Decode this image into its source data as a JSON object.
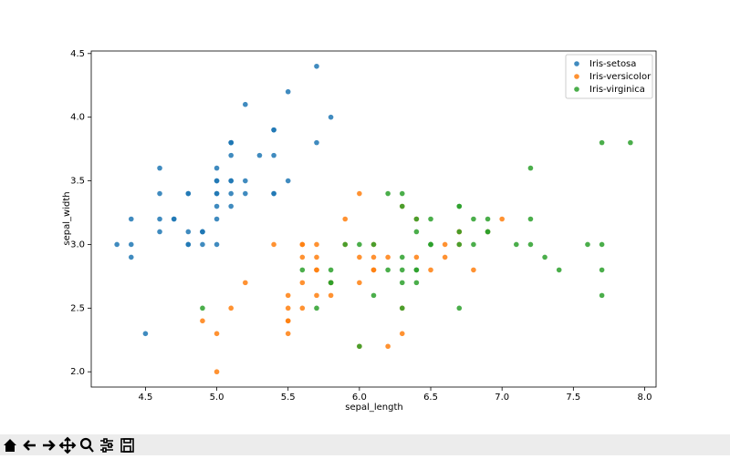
{
  "chart_data": {
    "type": "scatter",
    "xlabel": "sepal_length",
    "ylabel": "sepal_width",
    "xlim": [
      4.12,
      8.08
    ],
    "ylim": [
      1.88,
      4.52
    ],
    "xticks": [
      4.5,
      {
        "value": 5.0,
        "label": "5.0"
      },
      5.5,
      {
        "value": 6.0,
        "label": "6.0"
      },
      6.5,
      {
        "value": 7.0,
        "label": "7.0"
      },
      7.5,
      {
        "value": 8.0,
        "label": "8.0"
      }
    ],
    "yticks": [
      {
        "value": 2.0,
        "label": "2.0"
      },
      2.5,
      {
        "value": 3.0,
        "label": "3.0"
      },
      3.5,
      {
        "value": 4.0,
        "label": "4.0"
      },
      4.5
    ],
    "legend": "upper right",
    "series": [
      {
        "name": "Iris-setosa",
        "color": "#1f77b4",
        "x": [
          5.1,
          4.9,
          4.7,
          4.6,
          5.0,
          5.4,
          4.6,
          5.0,
          4.4,
          4.9,
          5.4,
          4.8,
          4.8,
          4.3,
          5.8,
          5.7,
          5.4,
          5.1,
          5.7,
          5.1,
          5.4,
          5.1,
          4.6,
          5.1,
          4.8,
          5.0,
          5.0,
          5.2,
          5.2,
          4.7,
          4.8,
          5.4,
          5.2,
          5.5,
          4.9,
          5.0,
          5.5,
          4.9,
          4.4,
          5.1,
          5.0,
          4.5,
          4.4,
          5.0,
          5.1,
          4.8,
          5.1,
          4.6,
          5.3,
          5.0
        ],
        "values": [
          3.5,
          3.0,
          3.2,
          3.1,
          3.6,
          3.9,
          3.4,
          3.4,
          2.9,
          3.1,
          3.7,
          3.4,
          3.0,
          3.0,
          4.0,
          4.4,
          3.9,
          3.5,
          3.8,
          3.8,
          3.4,
          3.7,
          3.6,
          3.3,
          3.4,
          3.0,
          3.4,
          3.5,
          3.4,
          3.2,
          3.1,
          3.4,
          4.1,
          4.2,
          3.1,
          3.2,
          3.5,
          3.1,
          3.0,
          3.4,
          3.5,
          2.3,
          3.2,
          3.5,
          3.8,
          3.0,
          3.8,
          3.2,
          3.7,
          3.3
        ]
      },
      {
        "name": "Iris-versicolor",
        "color": "#ff7f0e",
        "x": [
          7.0,
          6.4,
          6.9,
          5.5,
          6.5,
          5.7,
          6.3,
          4.9,
          6.6,
          5.2,
          5.0,
          5.9,
          6.0,
          6.1,
          5.6,
          6.7,
          5.6,
          5.8,
          6.2,
          5.6,
          5.9,
          6.1,
          6.3,
          6.1,
          6.4,
          6.6,
          6.8,
          6.7,
          6.0,
          5.7,
          5.5,
          5.5,
          5.8,
          6.0,
          5.4,
          6.0,
          6.7,
          6.3,
          5.6,
          5.5,
          5.5,
          6.1,
          5.8,
          5.0,
          5.6,
          5.7,
          5.7,
          6.2,
          5.1,
          5.7
        ],
        "values": [
          3.2,
          3.2,
          3.1,
          2.3,
          2.8,
          2.8,
          3.3,
          2.4,
          2.9,
          2.7,
          2.0,
          3.0,
          2.2,
          2.9,
          2.9,
          3.1,
          3.0,
          2.7,
          2.2,
          2.5,
          3.2,
          2.8,
          2.5,
          2.8,
          2.9,
          3.0,
          2.8,
          3.0,
          2.9,
          2.6,
          2.4,
          2.4,
          2.7,
          2.7,
          3.0,
          3.4,
          3.1,
          2.3,
          3.0,
          2.5,
          2.6,
          3.0,
          2.6,
          2.3,
          2.7,
          3.0,
          2.9,
          2.9,
          2.5,
          2.8
        ]
      },
      {
        "name": "Iris-virginica",
        "color": "#2ca02c",
        "x": [
          6.3,
          5.8,
          7.1,
          6.3,
          6.5,
          7.6,
          4.9,
          7.3,
          6.7,
          7.2,
          6.5,
          6.4,
          6.8,
          5.7,
          5.8,
          6.4,
          6.5,
          7.7,
          7.7,
          6.0,
          6.9,
          5.6,
          7.7,
          6.3,
          6.7,
          7.2,
          6.2,
          6.1,
          6.4,
          7.2,
          7.4,
          7.9,
          6.4,
          6.3,
          6.1,
          7.7,
          6.3,
          6.4,
          6.0,
          6.9,
          6.7,
          6.9,
          5.8,
          6.8,
          6.7,
          6.7,
          6.3,
          6.5,
          6.2,
          5.9
        ],
        "values": [
          3.3,
          2.7,
          3.0,
          2.9,
          3.0,
          3.0,
          2.5,
          2.9,
          2.5,
          3.6,
          3.2,
          2.7,
          3.0,
          2.5,
          2.8,
          3.2,
          3.0,
          3.8,
          2.6,
          2.2,
          3.2,
          2.8,
          2.8,
          2.7,
          3.3,
          3.2,
          2.8,
          3.0,
          2.8,
          3.0,
          2.8,
          3.8,
          2.8,
          2.8,
          2.6,
          3.0,
          3.4,
          3.1,
          3.0,
          3.1,
          3.1,
          3.1,
          2.7,
          3.2,
          3.3,
          3.0,
          2.5,
          3.0,
          3.4,
          3.0
        ]
      }
    ]
  }
}
